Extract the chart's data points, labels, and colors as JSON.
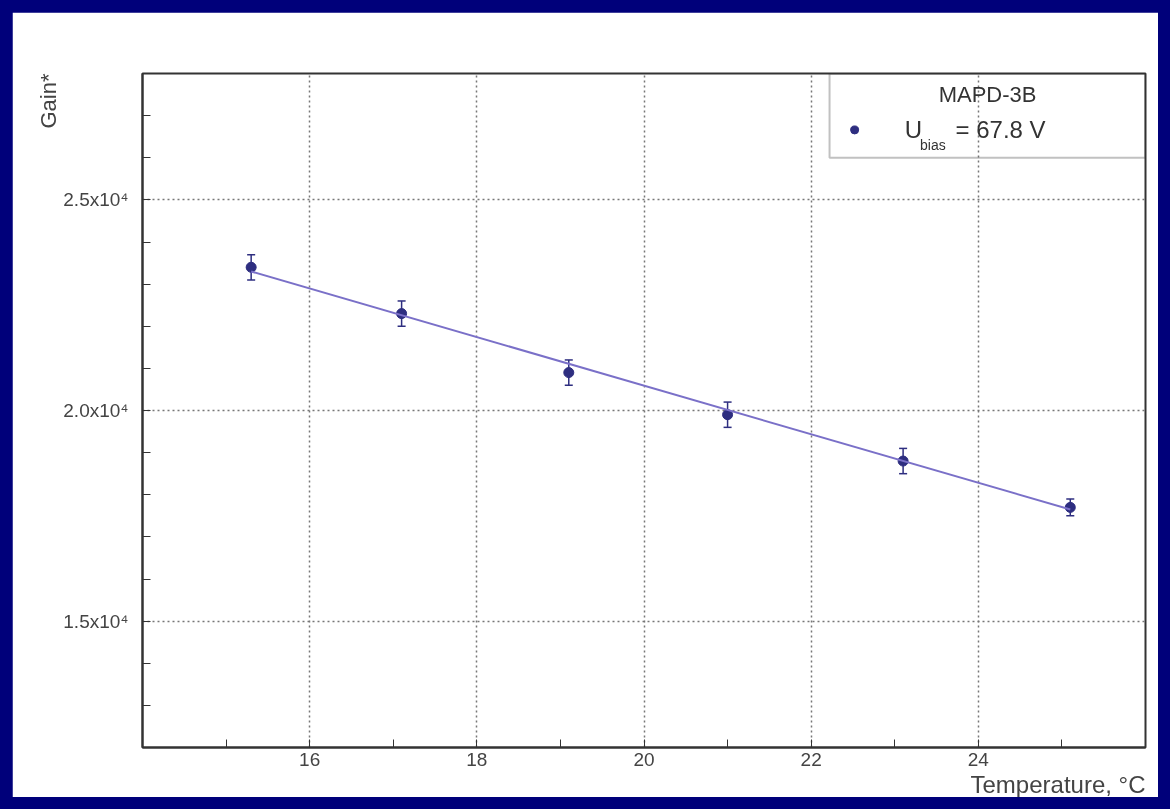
{
  "chart_data": {
    "type": "scatter",
    "xlabel": "Temperature, °C",
    "ylabel": "Gain*",
    "x": [
      15.3,
      17.1,
      19.1,
      21.0,
      23.1,
      25.1
    ],
    "series": [
      {
        "name": "U$_{bias}$ = 67.8 V",
        "color": "#2e2e80",
        "values": [
          23400,
          22300,
          20900,
          19900,
          18800,
          17700
        ],
        "errors": [
          300,
          300,
          300,
          300,
          300,
          200
        ]
      },
      {
        "type": "line",
        "marker": "none",
        "color": "#7a70c8",
        "x": [
          15.3,
          25.1
        ],
        "values": [
          23300,
          17650
        ]
      }
    ],
    "legend_title": "MAPD-3B",
    "legend": "top right",
    "marker": "circle",
    "grid": true,
    "xlim": [
      14,
      26
    ],
    "ylim": [
      12000,
      28000
    ],
    "xticks": [
      {
        "value": 15,
        "label": null
      },
      16,
      {
        "value": 17,
        "label": null
      },
      18,
      {
        "value": 19,
        "label": null
      },
      20,
      {
        "value": 21,
        "label": null
      },
      22,
      {
        "value": 23,
        "label": null
      },
      24,
      {
        "value": 25,
        "label": null
      }
    ],
    "yticks": [
      {
        "value": 13000,
        "label": null
      },
      {
        "value": 14000,
        "label": null
      },
      {
        "value": 15000,
        "label": "1.5x10⁴"
      },
      {
        "value": 16000,
        "label": null
      },
      {
        "value": 17000,
        "label": null
      },
      {
        "value": 18000,
        "label": null
      },
      {
        "value": 19000,
        "label": null
      },
      {
        "value": 20000,
        "label": "2.0x10⁴"
      },
      {
        "value": 21000,
        "label": null
      },
      {
        "value": 22000,
        "label": null
      },
      {
        "value": 23000,
        "label": null
      },
      {
        "value": 24000,
        "label": null
      },
      {
        "value": 25000,
        "label": "2.5x10⁴"
      },
      {
        "value": 26000,
        "label": null
      },
      {
        "value": 27000,
        "label": null
      }
    ]
  }
}
